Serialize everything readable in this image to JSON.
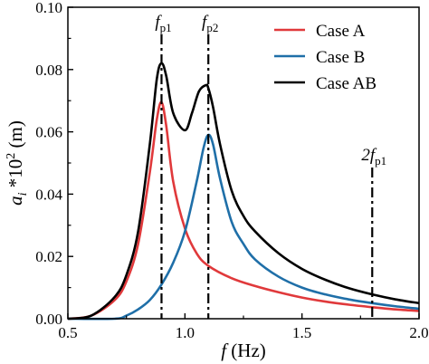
{
  "chart_data": {
    "type": "line",
    "xlabel_main": "f",
    "xlabel_unit": " (Hz)",
    "ylabel_sym": "a",
    "ylabel_sub": "i",
    "ylabel_rest": " *10",
    "ylabel_sup": "2",
    "ylabel_unit": " (m)",
    "xlim": [
      0.5,
      2.0
    ],
    "ylim": [
      0.0,
      0.1
    ],
    "xticks": [
      "0.5",
      "1.0",
      "1.5",
      "2.0"
    ],
    "yticks": [
      "0.00",
      "0.02",
      "0.04",
      "0.06",
      "0.08",
      "0.10"
    ],
    "legend_position": "top-right",
    "series": [
      {
        "name": "Case A",
        "color": "#e0393b",
        "x": [
          0.5,
          0.6,
          0.7,
          0.75,
          0.8,
          0.85,
          0.88,
          0.9,
          0.92,
          0.95,
          1.0,
          1.05,
          1.1,
          1.2,
          1.3,
          1.4,
          1.5,
          1.6,
          1.7,
          1.8,
          1.9,
          2.0
        ],
        "y": [
          0.0,
          0.001,
          0.006,
          0.012,
          0.024,
          0.047,
          0.064,
          0.0695,
          0.062,
          0.044,
          0.029,
          0.021,
          0.017,
          0.013,
          0.0105,
          0.0085,
          0.0068,
          0.0055,
          0.0045,
          0.0037,
          0.003,
          0.0025
        ]
      },
      {
        "name": "Case B",
        "color": "#1f6fa8",
        "x": [
          0.5,
          0.7,
          0.75,
          0.8,
          0.85,
          0.9,
          0.95,
          1.0,
          1.05,
          1.08,
          1.1,
          1.12,
          1.15,
          1.2,
          1.25,
          1.3,
          1.4,
          1.5,
          1.6,
          1.7,
          1.8,
          1.9,
          2.0
        ],
        "y": [
          0.0,
          0.0,
          0.001,
          0.003,
          0.006,
          0.011,
          0.018,
          0.028,
          0.044,
          0.055,
          0.059,
          0.056,
          0.045,
          0.031,
          0.024,
          0.019,
          0.0135,
          0.01,
          0.0078,
          0.0062,
          0.005,
          0.004,
          0.0032
        ]
      },
      {
        "name": "Case AB",
        "color": "#000000",
        "x": [
          0.5,
          0.6,
          0.7,
          0.75,
          0.8,
          0.85,
          0.88,
          0.9,
          0.92,
          0.95,
          1.0,
          1.03,
          1.06,
          1.09,
          1.1,
          1.12,
          1.15,
          1.2,
          1.25,
          1.3,
          1.4,
          1.5,
          1.6,
          1.7,
          1.8,
          1.9,
          2.0
        ],
        "y": [
          0.0,
          0.001,
          0.007,
          0.014,
          0.028,
          0.056,
          0.077,
          0.082,
          0.078,
          0.066,
          0.0605,
          0.066,
          0.073,
          0.075,
          0.074,
          0.068,
          0.056,
          0.041,
          0.033,
          0.028,
          0.021,
          0.016,
          0.0125,
          0.0098,
          0.0078,
          0.0062,
          0.005
        ]
      }
    ],
    "vlines": [
      {
        "x": 0.9,
        "label_main": "f",
        "label_sub": "p1"
      },
      {
        "x": 1.1,
        "label_main": "f",
        "label_sub": "p2"
      },
      {
        "x": 1.8,
        "label_main": "2f",
        "label_sub": "p1"
      }
    ]
  }
}
